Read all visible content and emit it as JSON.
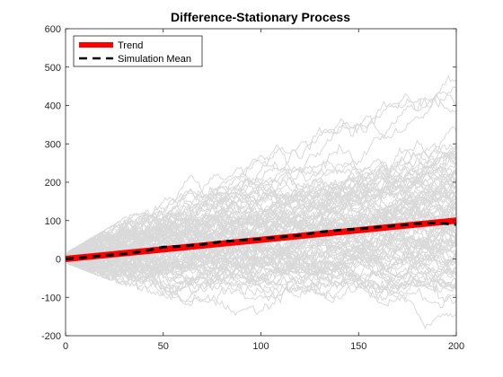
{
  "chart_data": {
    "type": "line",
    "title": "Difference-Stationary Process",
    "xlabel": "",
    "ylabel": "",
    "xlim": [
      0,
      200
    ],
    "ylim": [
      -200,
      600
    ],
    "xticks": [
      0,
      50,
      100,
      150,
      200
    ],
    "yticks": [
      -200,
      -100,
      0,
      100,
      200,
      300,
      400,
      500,
      600
    ],
    "grid": false,
    "legend_position": "top-left",
    "colors": {
      "simulations": "#d9d9d9",
      "trend": "#ff0000",
      "mean": "#000000"
    },
    "simulation_count": 100,
    "simulation_envelope": {
      "x": [
        0,
        25,
        50,
        75,
        100,
        125,
        150,
        175,
        200
      ],
      "upper": [
        15,
        90,
        180,
        260,
        330,
        400,
        440,
        500,
        525
      ],
      "lower": [
        -10,
        -60,
        -100,
        -140,
        -160,
        -170,
        -180,
        -190,
        -200
      ]
    },
    "series": [
      {
        "name": "Trend",
        "x": [
          0,
          200
        ],
        "y": [
          0,
          100
        ]
      },
      {
        "name": "Simulation Mean",
        "x": [
          0,
          10,
          20,
          30,
          40,
          50,
          60,
          70,
          80,
          90,
          100,
          110,
          120,
          130,
          140,
          150,
          160,
          170,
          180,
          190,
          200
        ],
        "y": [
          0,
          4,
          9,
          13,
          20,
          31,
          33,
          38,
          45,
          49,
          52,
          57,
          62,
          70,
          75,
          78,
          83,
          87,
          92,
          94,
          90
        ]
      }
    ]
  }
}
